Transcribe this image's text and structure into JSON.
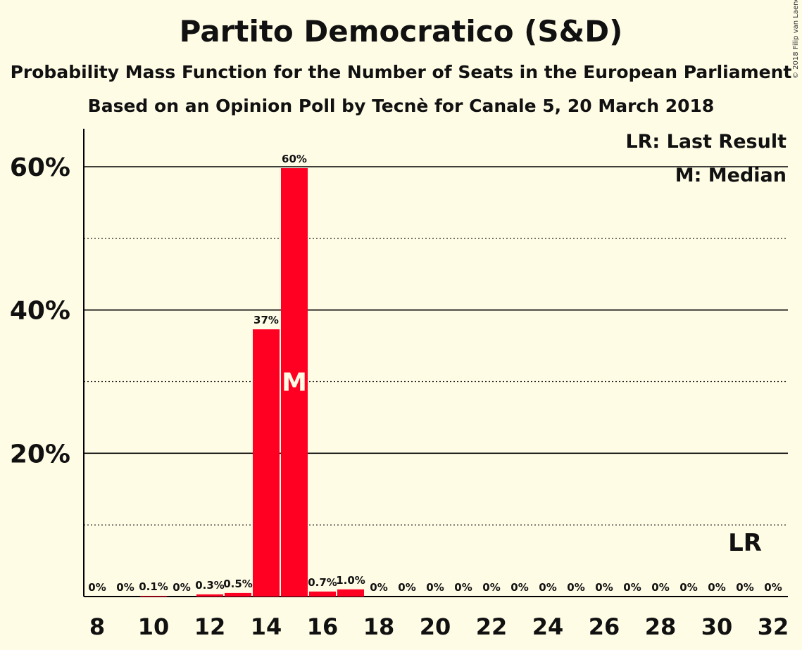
{
  "title": "Partito Democratico (S&D)",
  "subtitle1": "Probability Mass Function for the Number of Seats in the European Parliament",
  "subtitle2": "Based on an Opinion Poll by Tecnè for Canale 5, 20 March 2018",
  "copyright": "© 2018 Filip van Laenen",
  "legend": {
    "last_result": "LR: Last Result",
    "median": "M: Median"
  },
  "colors": {
    "bar": "#ff0022",
    "background": "#fffce6"
  },
  "chart_data": {
    "type": "bar",
    "x": [
      8,
      9,
      10,
      11,
      12,
      13,
      14,
      15,
      16,
      17,
      18,
      19,
      20,
      21,
      22,
      23,
      24,
      25,
      26,
      27,
      28,
      29,
      30,
      31,
      32
    ],
    "values": [
      0,
      0,
      0.1,
      0,
      0.3,
      0.5,
      37.3,
      59.8,
      0.7,
      1.0,
      0,
      0,
      0,
      0,
      0,
      0,
      0,
      0,
      0,
      0,
      0,
      0,
      0,
      0,
      0
    ],
    "labels": [
      "0%",
      "0%",
      "0.1%",
      "0%",
      "0.3%",
      "0.5%",
      "37%",
      "60%",
      "0.7%",
      "1.0%",
      "0%",
      "0%",
      "0%",
      "0%",
      "0%",
      "0%",
      "0%",
      "0%",
      "0%",
      "0%",
      "0%",
      "0%",
      "0%",
      "0%",
      "0%"
    ],
    "x_tick_labels": [
      "8",
      "10",
      "12",
      "14",
      "16",
      "18",
      "20",
      "22",
      "24",
      "26",
      "28",
      "30",
      "32"
    ],
    "y_tick_labels": [
      "20%",
      "40%",
      "60%"
    ],
    "ylim": [
      0,
      65
    ],
    "median_seat": 15,
    "median_label": "M",
    "last_result_seat": 31,
    "last_result_label": "LR",
    "grid": true,
    "legend_position": "top-right"
  }
}
